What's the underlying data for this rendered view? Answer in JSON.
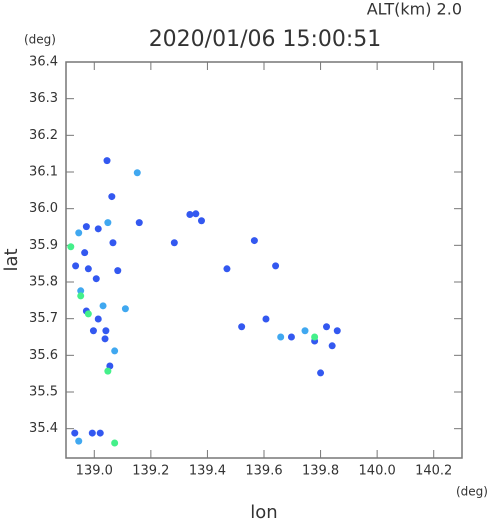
{
  "chart_data": {
    "type": "scatter",
    "title": "2020/01/06 15:00:51",
    "annotation": "ALT(km)  2.0",
    "y_unit": "(deg)",
    "x_unit": "(deg)",
    "xlabel": "lon",
    "ylabel": "lat",
    "xlim": [
      138.9,
      140.3
    ],
    "ylim": [
      35.32,
      36.4
    ],
    "xticks": [
      {
        "value": 139,
        "label": "139.0"
      },
      139.2,
      139.4,
      139.6,
      139.8,
      {
        "value": 140,
        "label": "140.0"
      },
      140.2
    ],
    "yticks": [
      {
        "value": 35.4,
        "label": "35.4"
      },
      35.5,
      35.6,
      35.7,
      35.8,
      35.9,
      {
        "value": 36,
        "label": "36.0"
      },
      36.1,
      36.2,
      36.3,
      36.4
    ],
    "series": [
      {
        "color": "#3358f0",
        "x": [
          139.045,
          139.062,
          138.972,
          139.014,
          138.934,
          138.979,
          138.966,
          139.007,
          138.972,
          139.014,
          138.997,
          139.055,
          138.931,
          138.993,
          139.021,
          139.338,
          139.359,
          139.379,
          139.283,
          139.566,
          139.641,
          139.779,
          139.821,
          139.859,
          139.841,
          139.8,
          139.521,
          139.607,
          139.469,
          139.159,
          139.083,
          139.066,
          139.697,
          139.038,
          139.041
        ],
        "values": [
          36.131,
          36.033,
          35.951,
          35.945,
          35.844,
          35.836,
          35.88,
          35.809,
          35.721,
          35.699,
          35.667,
          35.571,
          35.388,
          35.388,
          35.388,
          35.984,
          35.986,
          35.967,
          35.907,
          35.913,
          35.844,
          35.639,
          35.678,
          35.667,
          35.626,
          35.552,
          35.678,
          35.699,
          35.836,
          35.962,
          35.831,
          35.907,
          35.65,
          35.645,
          35.667
        ]
      },
      {
        "color": "#40a8f0",
        "x": [
          139.152,
          139.048,
          138.945,
          138.952,
          139.031,
          139.11,
          139.745,
          139.659,
          139.072,
          138.945
        ],
        "values": [
          36.098,
          35.962,
          35.934,
          35.776,
          35.735,
          35.727,
          35.667,
          35.65,
          35.612,
          35.366
        ]
      },
      {
        "color": "#44f08a",
        "x": [
          138.917,
          138.952,
          138.979,
          139.048,
          139.072,
          139.779
        ],
        "values": [
          35.896,
          35.762,
          35.713,
          35.557,
          35.361,
          35.65
        ]
      }
    ]
  }
}
